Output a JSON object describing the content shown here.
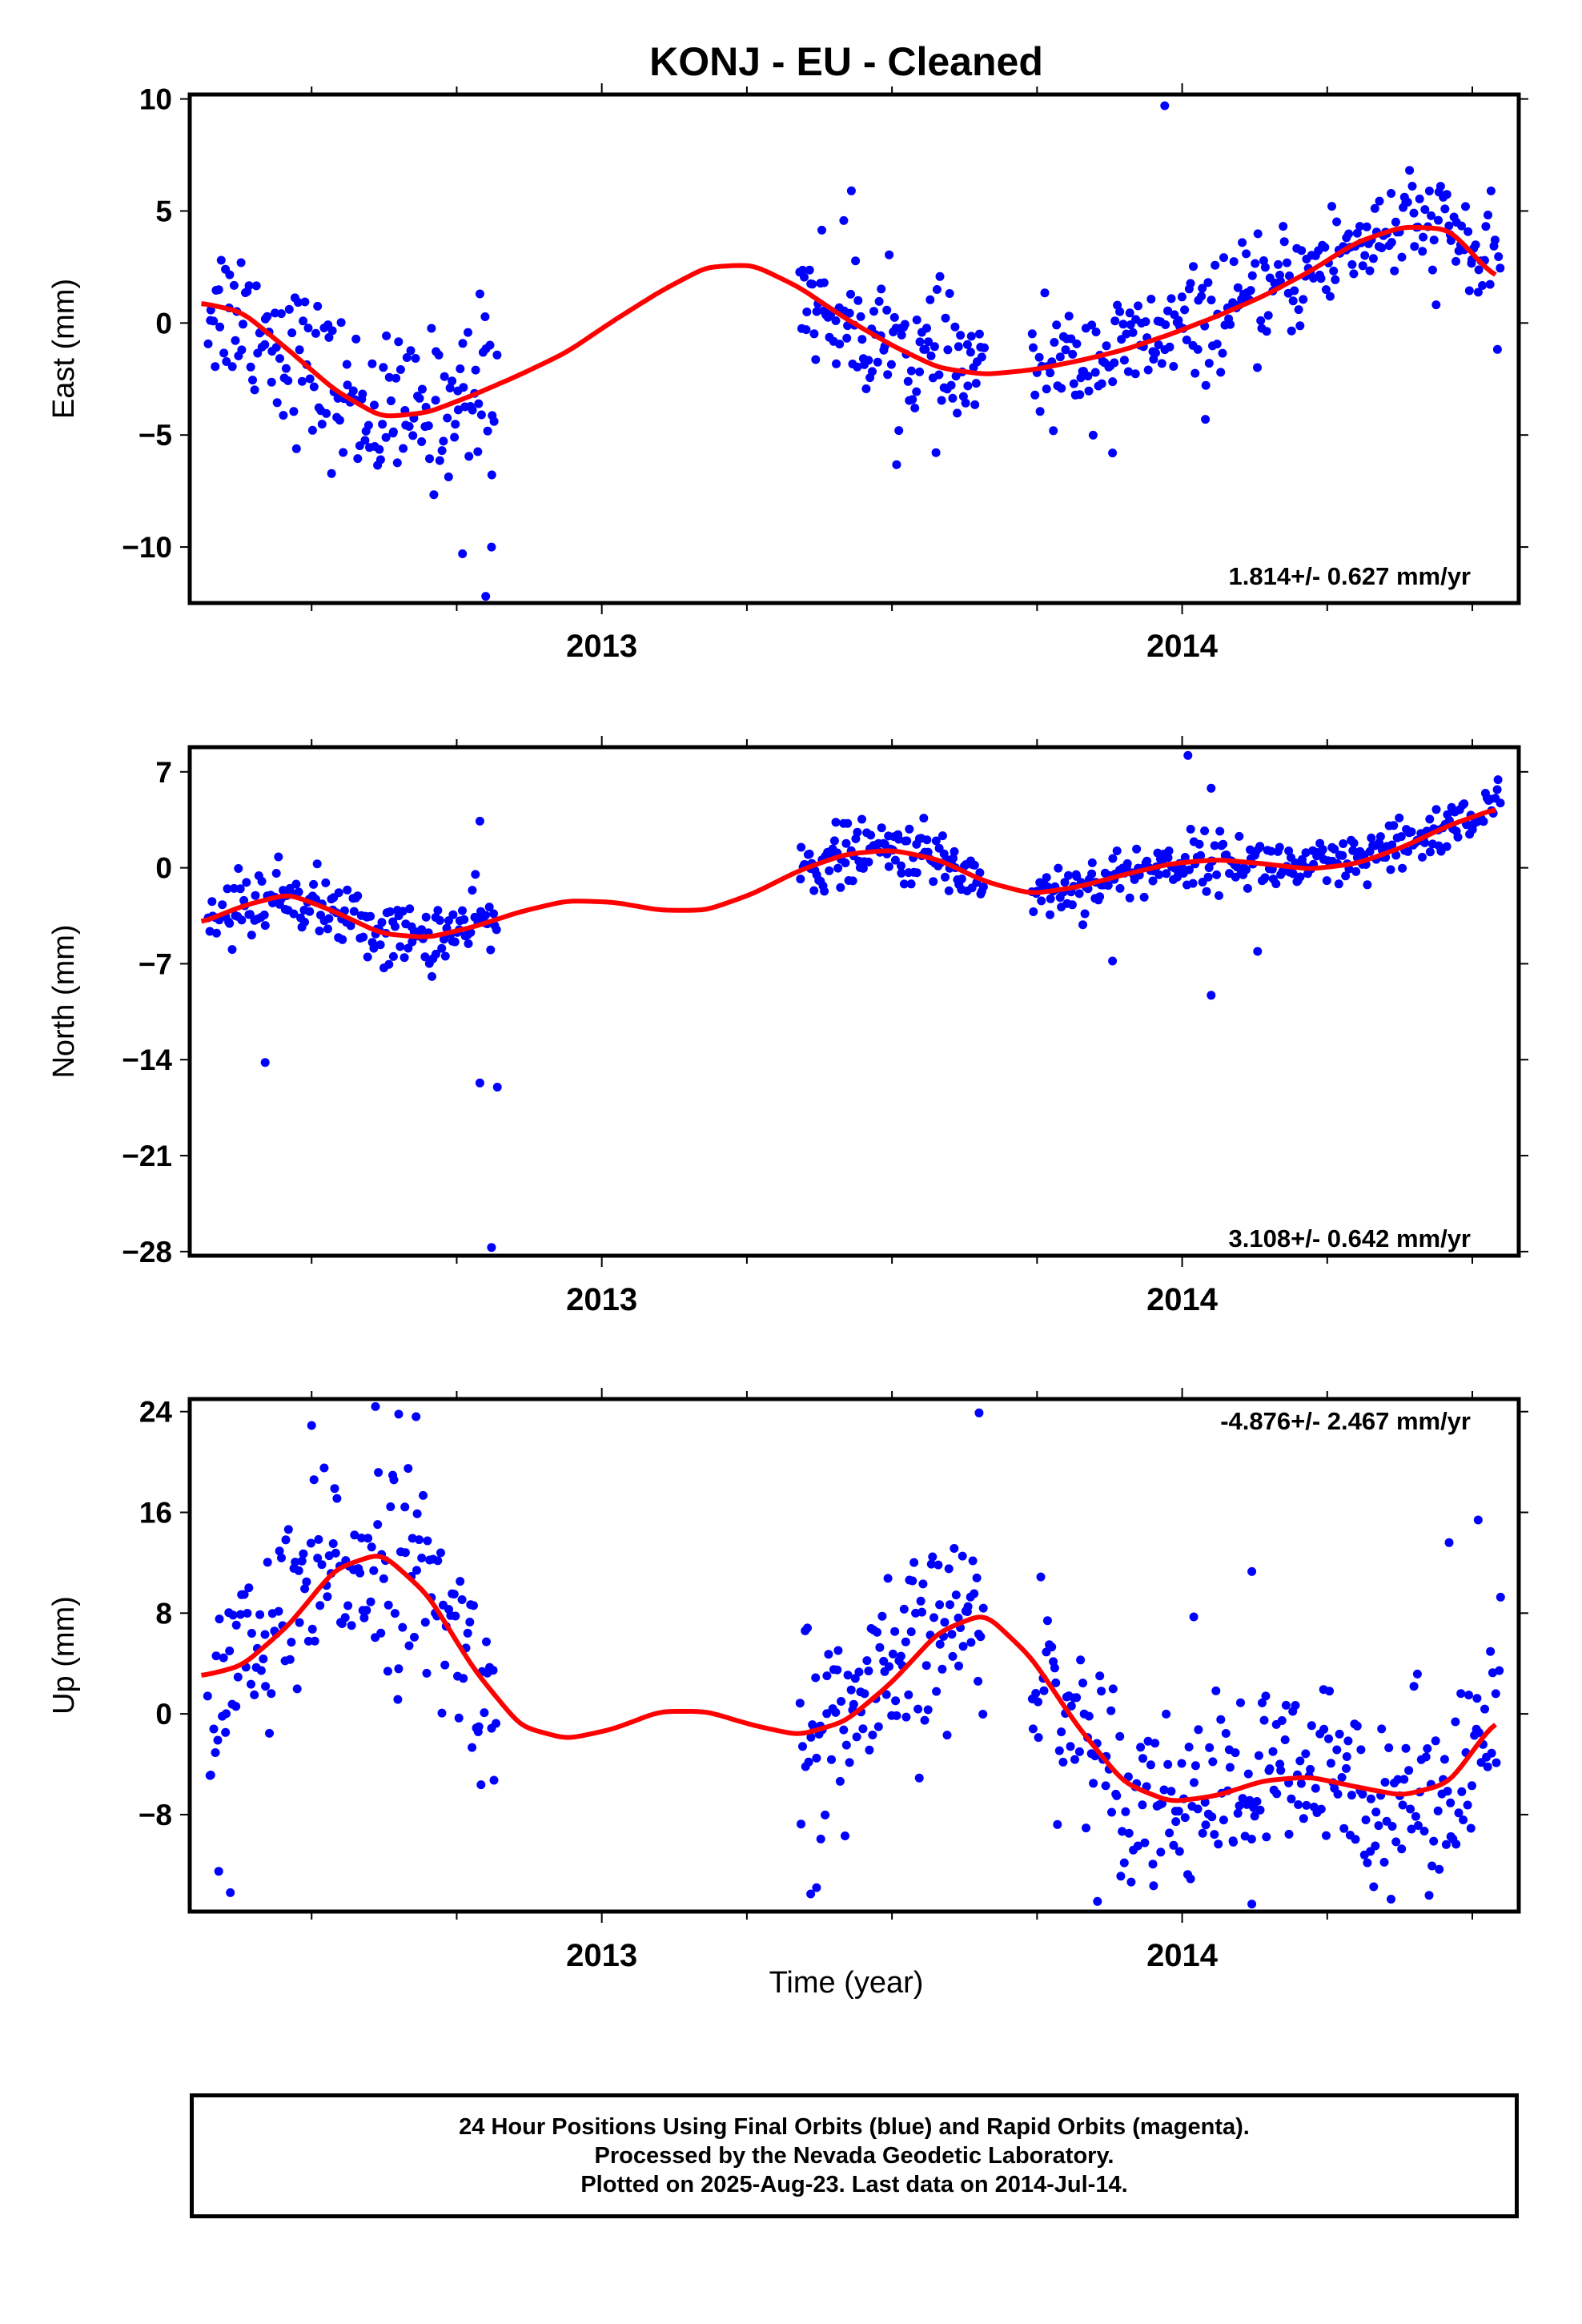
{
  "title": "KONJ  - EU - Cleaned",
  "xlabel": "Time (year)",
  "footer": {
    "line1": "24 Hour Positions Using Final Orbits (blue) and Rapid Orbits (magenta).",
    "line2": "Processed by the Nevada Geodetic Laboratory.",
    "line3": "Plotted on 2025-Aug-23. Last data on 2014-Jul-14."
  },
  "colors": {
    "points": "#0000ff",
    "fit": "#ff0000",
    "frame": "#000000"
  },
  "chart_data": [
    {
      "type": "scatter",
      "ylabel": "East (mm)",
      "rate_label": "1.814+/- 0.627 mm/yr",
      "xlim": [
        2012.29,
        2014.58
      ],
      "ylim": [
        -12.5,
        10.2
      ],
      "yticks": [
        10,
        5,
        0,
        -5,
        -10
      ],
      "ytick_labels": [
        "10",
        "5",
        "0",
        "−5",
        "−10"
      ],
      "xticks": [
        2013,
        2014
      ],
      "xtick_labels": [
        "2013",
        "2014"
      ],
      "fit": {
        "x": [
          2012.31,
          2012.38,
          2012.46,
          2012.54,
          2012.62,
          2012.7,
          2012.78,
          2012.86,
          2012.94,
          2013.02,
          2013.1,
          2013.18,
          2013.26,
          2013.34,
          2013.42,
          2013.5,
          2013.58,
          2013.66,
          2013.74,
          2013.82,
          2013.9,
          2013.98,
          2014.06,
          2014.14,
          2014.22,
          2014.3,
          2014.38,
          2014.46,
          2014.54
        ],
        "y": [
          0.9,
          0.5,
          -1.2,
          -3.0,
          -4.2,
          -4.0,
          -3.2,
          -2.3,
          -1.3,
          0.1,
          1.4,
          2.5,
          2.6,
          1.6,
          0.2,
          -1.0,
          -2.0,
          -2.3,
          -2.1,
          -1.7,
          -1.2,
          -0.5,
          0.3,
          1.2,
          2.3,
          3.6,
          4.3,
          4.2,
          2.0
        ]
      },
      "series": [
        {
          "name": "24 Hour Positions",
          "segments": [
            {
              "x0": 2012.32,
              "x1": 2012.82,
              "n": 170,
              "noise": 1.7,
              "outliers": [
                [
                  2012.79,
                  1.3
                ],
                [
                  2012.76,
                  -10.3
                ],
                [
                  2012.81,
                  -10.0
                ],
                [
                  2012.8,
                  -12.2
                ]
              ]
            },
            {
              "x0": 2013.34,
              "x1": 2013.66,
              "n": 120,
              "noise": 1.5,
              "outliers": [
                [
                  2013.43,
                  5.9
                ]
              ]
            },
            {
              "x0": 2013.74,
              "x1": 2014.55,
              "n": 270,
              "noise": 1.2,
              "outliers": [
                [
                  2013.97,
                  9.7
                ],
                [
                  2014.04,
                  -4.3
                ],
                [
                  2013.88,
                  -5.8
                ]
              ]
            }
          ]
        }
      ]
    },
    {
      "type": "scatter",
      "ylabel": "North (mm)",
      "rate_label": "3.108+/- 0.642 mm/yr",
      "xlim": [
        2012.29,
        2014.58
      ],
      "ylim": [
        -28.3,
        8.8
      ],
      "yticks": [
        7,
        0,
        -7,
        -14,
        -21,
        -28
      ],
      "ytick_labels": [
        "7",
        "0",
        "−7",
        "−14",
        "−21",
        "−28"
      ],
      "xticks": [
        2013,
        2014
      ],
      "xtick_labels": [
        "2013",
        "2014"
      ],
      "fit": {
        "x": [
          2012.31,
          2012.38,
          2012.46,
          2012.54,
          2012.62,
          2012.7,
          2012.78,
          2012.86,
          2012.94,
          2013.02,
          2013.1,
          2013.18,
          2013.26,
          2013.34,
          2013.42,
          2013.5,
          2013.58,
          2013.66,
          2013.74,
          2013.82,
          2013.9,
          2013.98,
          2014.06,
          2014.14,
          2014.22,
          2014.3,
          2014.38,
          2014.46,
          2014.54
        ],
        "y": [
          -4.0,
          -2.8,
          -1.9,
          -3.2,
          -4.8,
          -5.1,
          -4.3,
          -3.2,
          -2.4,
          -2.5,
          -3.1,
          -3.1,
          -1.9,
          -0.2,
          1.0,
          1.3,
          0.6,
          -1.0,
          -1.9,
          -1.4,
          -0.5,
          0.3,
          0.6,
          0.3,
          -0.1,
          0.3,
          1.5,
          3.1,
          4.3
        ]
      },
      "series": [
        {
          "name": "24 Hour Positions",
          "segments": [
            {
              "x0": 2012.32,
              "x1": 2012.82,
              "n": 170,
              "noise": 1.2,
              "outliers": [
                [
                  2012.42,
                  -14.2
                ],
                [
                  2012.79,
                  3.4
                ],
                [
                  2012.79,
                  -15.7
                ],
                [
                  2012.82,
                  -16.0
                ],
                [
                  2012.81,
                  -27.7
                ]
              ]
            },
            {
              "x0": 2013.34,
              "x1": 2013.66,
              "n": 120,
              "noise": 1.1,
              "outliers": []
            },
            {
              "x0": 2013.74,
              "x1": 2014.55,
              "n": 270,
              "noise": 1.0,
              "outliers": [
                [
                  2014.01,
                  8.2
                ],
                [
                  2014.05,
                  5.8
                ],
                [
                  2014.05,
                  -9.3
                ],
                [
                  2014.13,
                  -6.1
                ],
                [
                  2013.88,
                  -6.8
                ]
              ]
            }
          ]
        }
      ]
    },
    {
      "type": "scatter",
      "ylabel": "Up (mm)",
      "rate_label": "-4.876+/- 2.467 mm/yr",
      "xlim": [
        2012.29,
        2014.58
      ],
      "ylim": [
        -15.7,
        25.0
      ],
      "yticks": [
        24,
        16,
        8,
        0,
        -8
      ],
      "ytick_labels": [
        "24",
        "16",
        "8",
        "0",
        "−8"
      ],
      "xticks": [
        2013,
        2014
      ],
      "xtick_labels": [
        "2013",
        "2014"
      ],
      "fit": {
        "x": [
          2012.31,
          2012.38,
          2012.46,
          2012.54,
          2012.62,
          2012.7,
          2012.78,
          2012.86,
          2012.94,
          2013.02,
          2013.1,
          2013.18,
          2013.26,
          2013.34,
          2013.42,
          2013.5,
          2013.58,
          2013.66,
          2013.74,
          2013.82,
          2013.9,
          2013.98,
          2014.06,
          2014.14,
          2014.22,
          2014.3,
          2014.38,
          2014.46,
          2014.54
        ],
        "y": [
          3.0,
          3.8,
          7.0,
          11.5,
          12.8,
          9.5,
          3.5,
          -1.0,
          -2.0,
          -1.2,
          0.2,
          0.2,
          -0.9,
          -1.7,
          -0.6,
          2.5,
          6.5,
          8.0,
          4.5,
          -1.0,
          -5.5,
          -7.0,
          -6.5,
          -5.3,
          -5.0,
          -5.8,
          -6.5,
          -5.5,
          -0.5
        ]
      },
      "series": [
        {
          "name": "24 Hour Positions",
          "segments": [
            {
              "x0": 2012.32,
              "x1": 2012.82,
              "n": 170,
              "noise": 4.0,
              "outliers": [
                [
                  2012.61,
                  24.4
                ],
                [
                  2012.65,
                  23.8
                ],
                [
                  2012.68,
                  23.6
                ],
                [
                  2012.5,
                  22.9
                ],
                [
                  2012.36,
                  -14.2
                ],
                [
                  2012.34,
                  -12.5
                ]
              ]
            },
            {
              "x0": 2013.34,
              "x1": 2013.66,
              "n": 120,
              "noise": 3.8,
              "outliers": [
                [
                  2013.65,
                  23.9
                ],
                [
                  2013.36,
                  -14.3
                ],
                [
                  2013.37,
                  -13.8
                ]
              ]
            },
            {
              "x0": 2013.74,
              "x1": 2014.55,
              "n": 270,
              "noise": 3.6,
              "outliers": [
                [
                  2014.12,
                  11.3
                ],
                [
                  2014.51,
                  15.4
                ],
                [
                  2014.46,
                  13.6
                ],
                [
                  2014.02,
                  7.7
                ],
                [
                  2014.12,
                  -15.1
                ]
              ]
            }
          ]
        }
      ]
    }
  ]
}
